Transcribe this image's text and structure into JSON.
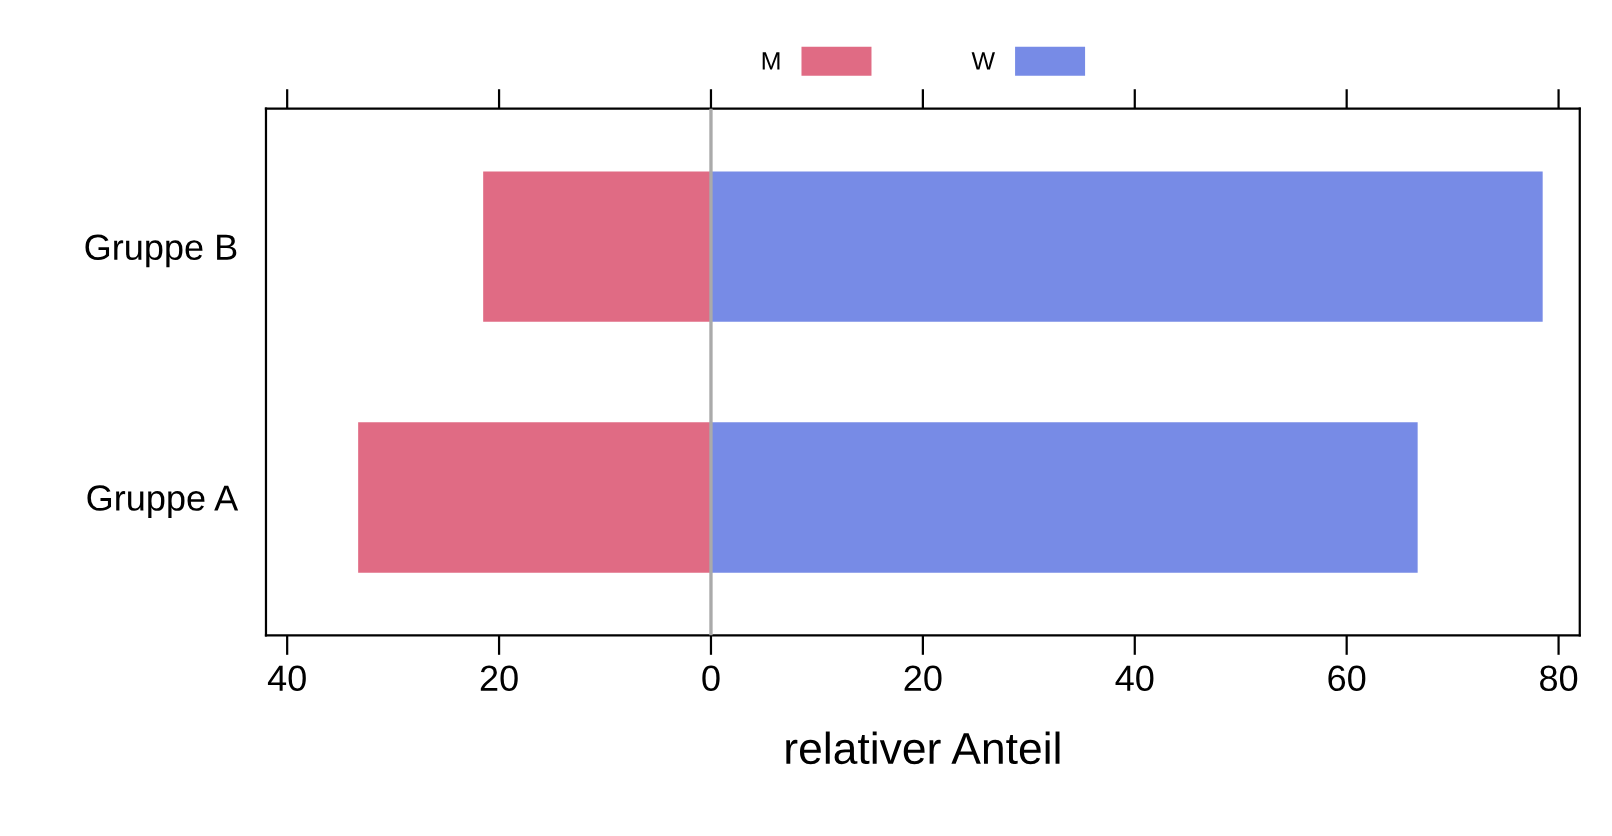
{
  "chart_data": {
    "type": "bar",
    "orientation": "horizontal",
    "stacked": true,
    "categories": [
      "Gruppe B",
      "Gruppe A"
    ],
    "series": [
      {
        "name": "M",
        "color": "#e06b84",
        "values": [
          -21.5,
          -33.3
        ]
      },
      {
        "name": "W",
        "color": "#778be6",
        "values": [
          78.5,
          66.7
        ]
      }
    ],
    "xlim": [
      -42,
      82
    ],
    "xticks": [
      {
        "value": -40,
        "label": "40"
      },
      {
        "value": -20,
        "label": "20"
      },
      0,
      20,
      40,
      60,
      80
    ],
    "xlabel": "relativer Anteil",
    "ref_lines": [
      {
        "axis": "x",
        "value": 0,
        "color": "#aaaaaa"
      }
    ],
    "legend": "top",
    "grid": false
  }
}
